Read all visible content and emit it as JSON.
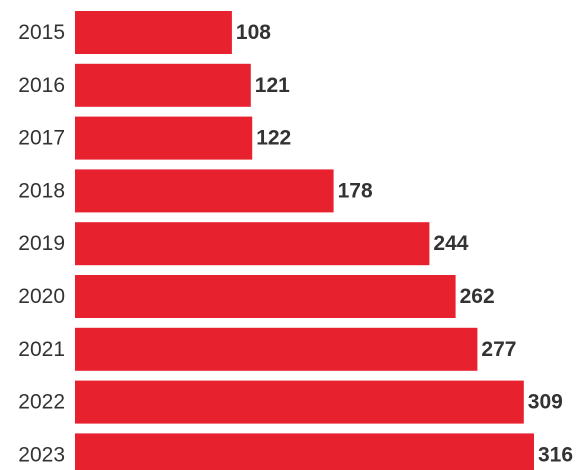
{
  "chart_data": {
    "type": "bar",
    "orientation": "horizontal",
    "categories": [
      "2015",
      "2016",
      "2017",
      "2018",
      "2019",
      "2020",
      "2021",
      "2022",
      "2023"
    ],
    "values": [
      108,
      121,
      122,
      178,
      244,
      262,
      277,
      309,
      316
    ],
    "value_labels": [
      "108",
      "121",
      "122",
      "178",
      "244",
      "262",
      "277",
      "309",
      "316"
    ],
    "title": "",
    "xlabel": "",
    "ylabel": "",
    "xlim": [
      0,
      316
    ],
    "grid": false,
    "legend": "none",
    "bar_color": "#e8212f",
    "label_color": "#333333"
  }
}
